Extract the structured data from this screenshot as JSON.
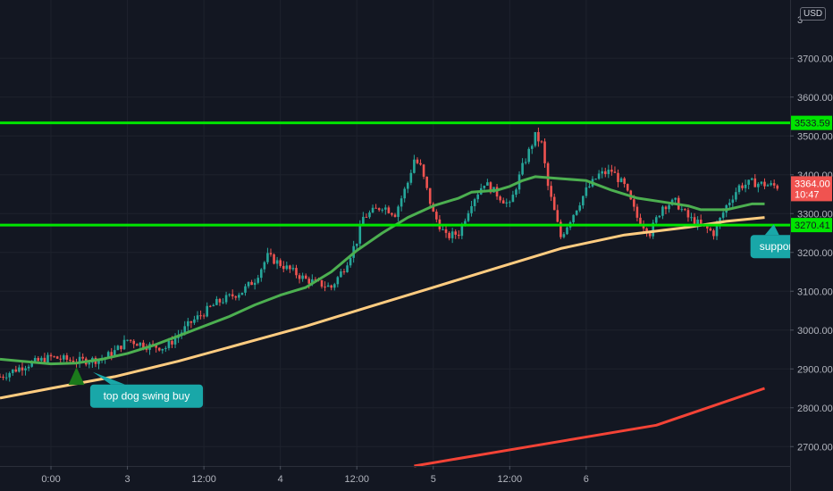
{
  "currency_badge": "USD",
  "chart_data": {
    "type": "candlestick",
    "title": "",
    "y_axis": {
      "range": [
        2650,
        3850
      ],
      "ticks": [
        "3700.00",
        "3600.00",
        "3500.00",
        "3400.00",
        "3300.00",
        "3200.00",
        "3100.00",
        "3000.00",
        "2900.00",
        "2800.00",
        "2700.00"
      ],
      "tick_values": [
        3700,
        3600,
        3500,
        3400,
        3300,
        3200,
        3100,
        3000,
        2900,
        2800,
        2700
      ],
      "top_partial_label": "3",
      "top_partial_value": 3800
    },
    "x_axis": {
      "range_hours": [
        -8,
        116
      ],
      "tick_labels": [
        "0:00",
        "3",
        "12:00",
        "4",
        "12:00",
        "5",
        "12:00",
        "6"
      ],
      "tick_hours": [
        0,
        12,
        24,
        36,
        48,
        60,
        72,
        84
      ]
    },
    "horizontal_levels": [
      {
        "label": "3533.59",
        "value": 3533.59,
        "color": "#00e500"
      },
      {
        "label": "3270.41",
        "value": 3270.41,
        "color": "#00e500"
      }
    ],
    "last_price": {
      "label": "3364.00",
      "value": 3364.0,
      "countdown": "10:47",
      "color": "#f05350"
    },
    "candle_anchors": [
      [
        -8,
        2880
      ],
      [
        -4,
        2910
      ],
      [
        0,
        2930
      ],
      [
        4,
        2920
      ],
      [
        8,
        2925
      ],
      [
        10,
        2945
      ],
      [
        12,
        2975
      ],
      [
        15,
        2960
      ],
      [
        18,
        2955
      ],
      [
        22,
        3020
      ],
      [
        26,
        3070
      ],
      [
        30,
        3100
      ],
      [
        32,
        3130
      ],
      [
        34,
        3190
      ],
      [
        36,
        3170
      ],
      [
        38,
        3150
      ],
      [
        40,
        3130
      ],
      [
        44,
        3110
      ],
      [
        46,
        3160
      ],
      [
        48,
        3230
      ],
      [
        49,
        3290
      ],
      [
        52,
        3320
      ],
      [
        54,
        3300
      ],
      [
        56,
        3380
      ],
      [
        57,
        3440
      ],
      [
        58,
        3420
      ],
      [
        60,
        3300
      ],
      [
        62,
        3240
      ],
      [
        64,
        3250
      ],
      [
        66,
        3330
      ],
      [
        68,
        3380
      ],
      [
        70,
        3350
      ],
      [
        72,
        3320
      ],
      [
        74,
        3420
      ],
      [
        76,
        3500
      ],
      [
        77,
        3480
      ],
      [
        78,
        3370
      ],
      [
        80,
        3240
      ],
      [
        82,
        3300
      ],
      [
        84,
        3360
      ],
      [
        86,
        3400
      ],
      [
        88,
        3410
      ],
      [
        90,
        3370
      ],
      [
        92,
        3290
      ],
      [
        94,
        3250
      ],
      [
        96,
        3320
      ],
      [
        98,
        3330
      ],
      [
        100,
        3290
      ],
      [
        102,
        3270
      ],
      [
        104,
        3250
      ],
      [
        106,
        3320
      ],
      [
        108,
        3370
      ],
      [
        110,
        3380
      ],
      [
        112,
        3375
      ],
      [
        114,
        3370
      ]
    ],
    "series": [
      {
        "type": "line",
        "color": "#4caf50",
        "points": [
          [
            -8,
            2925
          ],
          [
            0,
            2913
          ],
          [
            4,
            2915
          ],
          [
            8,
            2925
          ],
          [
            12,
            2940
          ],
          [
            16,
            2960
          ],
          [
            20,
            2985
          ],
          [
            24,
            3010
          ],
          [
            28,
            3035
          ],
          [
            32,
            3065
          ],
          [
            36,
            3090
          ],
          [
            40,
            3110
          ],
          [
            44,
            3150
          ],
          [
            48,
            3205
          ],
          [
            52,
            3250
          ],
          [
            56,
            3290
          ],
          [
            60,
            3320
          ],
          [
            64,
            3340
          ],
          [
            66,
            3355
          ],
          [
            70,
            3360
          ],
          [
            72,
            3370
          ],
          [
            74,
            3385
          ],
          [
            76,
            3395
          ],
          [
            80,
            3390
          ],
          [
            84,
            3385
          ],
          [
            88,
            3360
          ],
          [
            92,
            3340
          ],
          [
            96,
            3330
          ],
          [
            100,
            3320
          ],
          [
            102,
            3310
          ],
          [
            106,
            3310
          ],
          [
            110,
            3325
          ],
          [
            112,
            3325
          ]
        ]
      },
      {
        "type": "line",
        "color": "#ffcc80",
        "points": [
          [
            -8,
            2825
          ],
          [
            0,
            2850
          ],
          [
            10,
            2880
          ],
          [
            20,
            2920
          ],
          [
            30,
            2965
          ],
          [
            40,
            3010
          ],
          [
            50,
            3060
          ],
          [
            60,
            3110
          ],
          [
            70,
            3160
          ],
          [
            80,
            3210
          ],
          [
            90,
            3245
          ],
          [
            100,
            3265
          ],
          [
            106,
            3280
          ],
          [
            112,
            3290
          ]
        ]
      },
      {
        "type": "line",
        "color": "#f44336",
        "points": [
          [
            57,
            2650
          ],
          [
            75,
            2700
          ],
          [
            95,
            2755
          ],
          [
            112,
            2850
          ]
        ]
      }
    ],
    "annotations": [
      {
        "type": "arrow-up",
        "at": [
          4,
          2905
        ],
        "color": "#1b7a1b"
      },
      {
        "type": "callout",
        "text": "top dog swing buy",
        "at": [
          15,
          2830
        ],
        "color": "#19a7a8"
      },
      {
        "type": "callout",
        "text": "support",
        "at": [
          114,
          3215
        ],
        "color": "#19a7a8"
      },
      {
        "type": "trendline",
        "from": [
          118,
          3270
        ],
        "to": [
          119.5,
          3533
        ],
        "color": "#4caf50"
      }
    ]
  }
}
